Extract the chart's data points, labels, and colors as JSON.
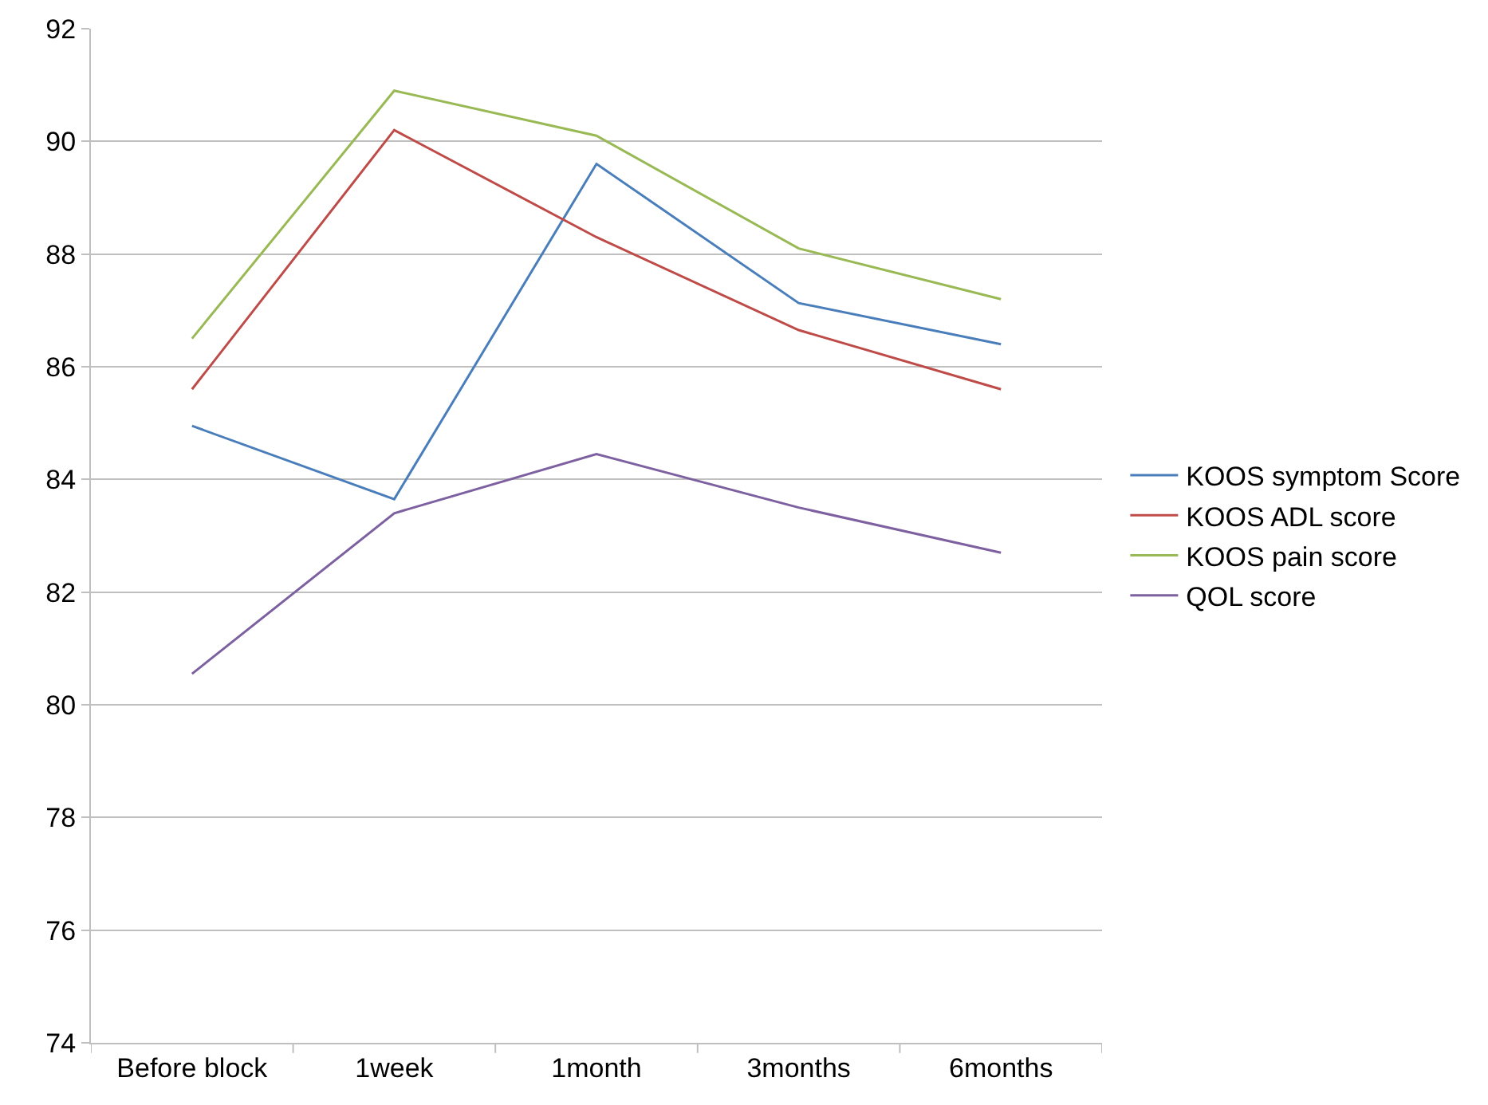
{
  "chart_data": {
    "type": "line",
    "categories": [
      "Before block",
      "1week",
      "1month",
      "3months",
      "6months"
    ],
    "series": [
      {
        "name": "KOOS symptom Score",
        "color": "#4a7ebb",
        "values": [
          84.95,
          83.65,
          89.6,
          87.13,
          86.4
        ]
      },
      {
        "name": "KOOS ADL score",
        "color": "#be4b48",
        "values": [
          85.6,
          90.2,
          88.3,
          86.65,
          85.6
        ]
      },
      {
        "name": "KOOS pain score",
        "color": "#98b954",
        "values": [
          86.5,
          90.9,
          90.1,
          88.1,
          87.2
        ]
      },
      {
        "name": "QOL score",
        "color": "#7d60a0",
        "values": [
          80.55,
          83.4,
          84.45,
          83.5,
          82.7
        ]
      }
    ],
    "ylim": [
      74,
      92
    ],
    "yticks": [
      74,
      76,
      78,
      80,
      82,
      84,
      86,
      88,
      90,
      92
    ],
    "grid": "y",
    "legend": "right",
    "marker": "none",
    "line_style": "solid"
  }
}
